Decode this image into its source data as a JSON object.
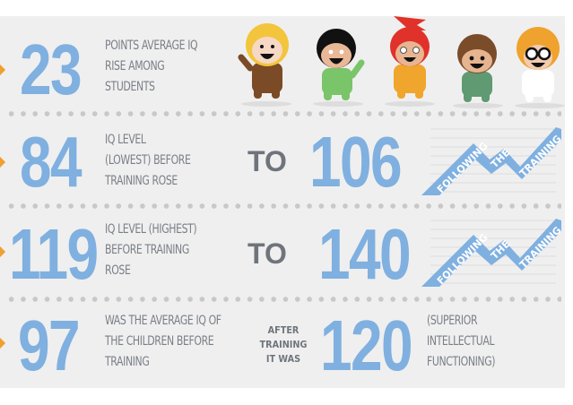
{
  "colors": {
    "accent": "#7fb0e0",
    "text": "#7a7f87",
    "background": "#efefef",
    "marker": "#f0a030"
  },
  "rows": [
    {
      "number": "23",
      "lines": [
        "POINTS AVERAGE IQ",
        "RISE AMONG",
        "STUDENTS"
      ]
    },
    {
      "number": "84",
      "lines": [
        "IQ LEVEL",
        "(LOWEST) BEFORE",
        "TRAINING ROSE"
      ],
      "connector": "TO",
      "result": "106",
      "ribbon": [
        "FOLLOWING",
        "THE",
        "TRAINING"
      ]
    },
    {
      "number": "119",
      "lines": [
        "IQ LEVEL (HIGHEST)",
        "BEFORE TRAINING",
        "ROSE"
      ],
      "connector": "TO",
      "result": "140",
      "ribbon": [
        "FOLLOWING",
        "THE",
        "TRAINING"
      ]
    },
    {
      "number": "97",
      "lines": [
        "WAS THE AVERAGE IQ OF",
        "THE CHILDREN BEFORE",
        "TRAINING"
      ],
      "connector_lines": [
        "AFTER",
        "TRAINING",
        "IT WAS"
      ],
      "result": "120",
      "result_lines": [
        "(SUPERIOR",
        "INTELLECTUAL",
        "FUNCTIONING)"
      ]
    }
  ],
  "characters": [
    "blonde-kid",
    "black-hair-kid",
    "red-hair-kid",
    "brown-hair-kid",
    "scientist-kid"
  ]
}
